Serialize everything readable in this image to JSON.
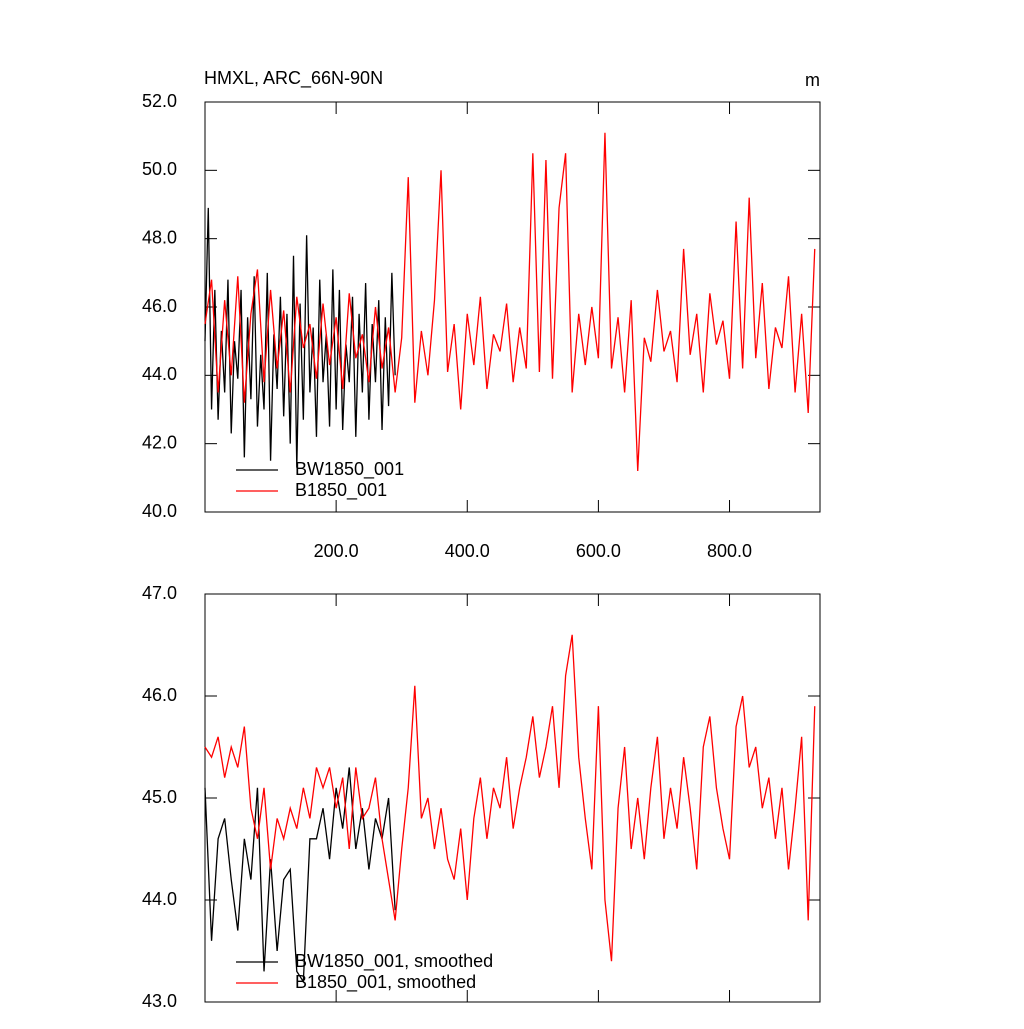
{
  "chart_data": [
    {
      "type": "line",
      "title": "HMXL, ARC_66N-90N",
      "units": "m",
      "xlim": [
        0,
        938
      ],
      "xticks": [
        {
          "value": 200,
          "label": "200.0"
        },
        {
          "value": 400,
          "label": "400.0"
        },
        {
          "value": 600,
          "label": "600.0"
        },
        {
          "value": 800,
          "label": "800.0"
        }
      ],
      "ylim": [
        40,
        52
      ],
      "yticks": [
        {
          "value": 40,
          "label": "40.0"
        },
        {
          "value": 42,
          "label": "42.0"
        },
        {
          "value": 44,
          "label": "44.0"
        },
        {
          "value": 46,
          "label": "46.0"
        },
        {
          "value": 48,
          "label": "48.0"
        },
        {
          "value": 50,
          "label": "50.0"
        },
        {
          "value": 52,
          "label": "52.0"
        }
      ],
      "series": [
        {
          "name": "BW1850_001",
          "color": "#000000",
          "x": [
            0,
            5,
            10,
            15,
            20,
            25,
            30,
            35,
            40,
            45,
            50,
            55,
            60,
            65,
            70,
            75,
            80,
            85,
            90,
            95,
            100,
            105,
            110,
            115,
            120,
            125,
            130,
            135,
            140,
            145,
            150,
            155,
            160,
            165,
            170,
            175,
            180,
            185,
            190,
            195,
            200,
            205,
            210,
            215,
            220,
            225,
            230,
            235,
            240,
            245,
            250,
            255,
            260,
            265,
            270,
            275,
            280,
            285,
            290
          ],
          "values": [
            45,
            48.9,
            43,
            46.5,
            42.7,
            45.3,
            43.5,
            46.8,
            42.3,
            45,
            43.9,
            46.5,
            41.6,
            45.7,
            43.3,
            46.9,
            42.5,
            44.6,
            43,
            47,
            41.5,
            45.2,
            43.6,
            46.3,
            42.8,
            45.8,
            42,
            47.5,
            41.3,
            46.1,
            42.7,
            48.1,
            43.5,
            45.4,
            42.2,
            46.8,
            43.8,
            45.2,
            42.5,
            47.1,
            43,
            46.5,
            42.4,
            44.9,
            43.8,
            46.3,
            42.2,
            45.8,
            43.5,
            46.7,
            42.7,
            45.5,
            43.8,
            46.2,
            42.4,
            45.7,
            43.1,
            47,
            44
          ]
        },
        {
          "name": "B1850_001",
          "color": "#ff0000",
          "x": [
            0,
            10,
            20,
            30,
            40,
            50,
            60,
            70,
            80,
            90,
            100,
            110,
            120,
            130,
            140,
            150,
            160,
            170,
            180,
            190,
            200,
            210,
            220,
            230,
            240,
            250,
            260,
            270,
            280,
            290,
            300,
            310,
            320,
            330,
            340,
            350,
            360,
            370,
            380,
            390,
            400,
            410,
            420,
            430,
            440,
            450,
            460,
            470,
            480,
            490,
            500,
            510,
            520,
            530,
            540,
            550,
            560,
            570,
            580,
            590,
            600,
            610,
            620,
            630,
            640,
            650,
            660,
            670,
            680,
            690,
            700,
            710,
            720,
            730,
            740,
            750,
            760,
            770,
            780,
            790,
            800,
            810,
            820,
            830,
            840,
            850,
            860,
            870,
            880,
            890,
            900,
            910,
            920,
            930
          ],
          "values": [
            45.5,
            46.8,
            43.5,
            46.2,
            44,
            46.9,
            43.2,
            45.8,
            47.1,
            43.8,
            46.5,
            44.2,
            45.9,
            43.5,
            46.3,
            44.8,
            45.5,
            43.9,
            46.1,
            44.3,
            45.7,
            43.6,
            46.4,
            44.5,
            45.2,
            43.8,
            46,
            44.2,
            45.4,
            43.5,
            45.1,
            49.8,
            43.2,
            45.3,
            44,
            46.2,
            50,
            44.1,
            45.5,
            43,
            45.8,
            44.3,
            46.3,
            43.6,
            45.2,
            44.7,
            46.1,
            43.8,
            45.4,
            44.2,
            50.5,
            44.1,
            50.3,
            43.9,
            48.9,
            50.5,
            43.5,
            45.8,
            44.3,
            46,
            44.5,
            51.1,
            44.2,
            45.7,
            43.5,
            46.2,
            41.2,
            45.1,
            44.4,
            46.5,
            44.7,
            45.3,
            43.8,
            47.7,
            44.6,
            45.8,
            43.5,
            46.4,
            44.9,
            45.6,
            43.9,
            48.5,
            44.2,
            49.2,
            44.5,
            46.7,
            43.6,
            45.4,
            44.8,
            46.9,
            43.5,
            45.8,
            42.9,
            47.7
          ]
        }
      ]
    },
    {
      "type": "line",
      "xlim": [
        0,
        938
      ],
      "ylim": [
        43,
        47
      ],
      "yticks": [
        {
          "value": 43,
          "label": "43.0"
        },
        {
          "value": 44,
          "label": "44.0"
        },
        {
          "value": 45,
          "label": "45.0"
        },
        {
          "value": 46,
          "label": "46.0"
        },
        {
          "value": 47,
          "label": "47.0"
        }
      ],
      "series": [
        {
          "name": "BW1850_001, smoothed",
          "color": "#000000",
          "x": [
            0,
            10,
            20,
            30,
            40,
            50,
            60,
            70,
            80,
            90,
            100,
            110,
            120,
            130,
            140,
            150,
            160,
            170,
            180,
            190,
            200,
            210,
            220,
            230,
            240,
            250,
            260,
            270,
            280,
            290
          ],
          "values": [
            45.1,
            43.6,
            44.6,
            44.8,
            44.2,
            43.7,
            44.6,
            44.2,
            45.1,
            43.3,
            44.4,
            43.5,
            44.2,
            44.3,
            43.3,
            43.2,
            44.6,
            44.6,
            44.9,
            44.4,
            45.1,
            44.7,
            45.3,
            44.5,
            44.9,
            44.3,
            44.8,
            44.6,
            45,
            43.9
          ]
        },
        {
          "name": "B1850_001, smoothed",
          "color": "#ff0000",
          "x": [
            0,
            10,
            20,
            30,
            40,
            50,
            60,
            70,
            80,
            90,
            100,
            110,
            120,
            130,
            140,
            150,
            160,
            170,
            180,
            190,
            200,
            210,
            220,
            230,
            240,
            250,
            260,
            270,
            280,
            290,
            300,
            310,
            320,
            330,
            340,
            350,
            360,
            370,
            380,
            390,
            400,
            410,
            420,
            430,
            440,
            450,
            460,
            470,
            480,
            490,
            500,
            510,
            520,
            530,
            540,
            550,
            560,
            570,
            580,
            590,
            600,
            610,
            620,
            630,
            640,
            650,
            660,
            670,
            680,
            690,
            700,
            710,
            720,
            730,
            740,
            750,
            760,
            770,
            780,
            790,
            800,
            810,
            820,
            830,
            840,
            850,
            860,
            870,
            880,
            890,
            900,
            910,
            920,
            930
          ],
          "values": [
            45.5,
            45.4,
            45.6,
            45.2,
            45.5,
            45.3,
            45.7,
            44.9,
            44.6,
            45.1,
            44.3,
            44.8,
            44.6,
            44.9,
            44.7,
            45.1,
            44.8,
            45.3,
            45.1,
            45.3,
            44.9,
            45.2,
            44.5,
            45.3,
            44.8,
            44.9,
            45.2,
            44.6,
            44.2,
            43.8,
            44.5,
            45.1,
            46.1,
            44.8,
            45,
            44.5,
            44.9,
            44.4,
            44.2,
            44.7,
            44,
            44.8,
            45.2,
            44.6,
            45.1,
            44.9,
            45.4,
            44.7,
            45.1,
            45.4,
            45.8,
            45.2,
            45.5,
            45.9,
            45.1,
            46.2,
            46.6,
            45.4,
            44.8,
            44.3,
            45.9,
            44,
            43.4,
            44.9,
            45.5,
            44.5,
            45,
            44.4,
            45.1,
            45.6,
            44.6,
            45.1,
            44.7,
            45.4,
            44.9,
            44.3,
            45.5,
            45.8,
            45.1,
            44.7,
            44.4,
            45.7,
            46,
            45.3,
            45.5,
            44.9,
            45.2,
            44.6,
            45.1,
            44.3,
            44.9,
            45.6,
            43.8,
            45.9
          ]
        }
      ]
    }
  ]
}
